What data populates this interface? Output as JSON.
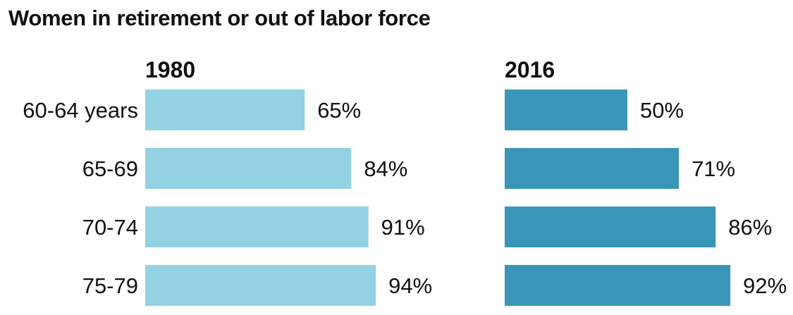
{
  "title": "Women in retirement or out of labor force",
  "chart_data": {
    "type": "bar",
    "orientation": "horizontal",
    "title": "Women in retirement or out of labor force",
    "categories": [
      "60-64 years",
      "65-69",
      "70-74",
      "75-79"
    ],
    "series": [
      {
        "name": "1980",
        "values": [
          65,
          84,
          91,
          94
        ],
        "labels": [
          "65%",
          "84%",
          "91%",
          "94%"
        ],
        "color": "#92d2e2"
      },
      {
        "name": "2016",
        "values": [
          50,
          71,
          86,
          92
        ],
        "labels": [
          "50%",
          "71%",
          "86%",
          "92%"
        ],
        "color": "#3a96b8"
      }
    ],
    "xlim": [
      0,
      100
    ],
    "grid": false,
    "legend": "none"
  }
}
